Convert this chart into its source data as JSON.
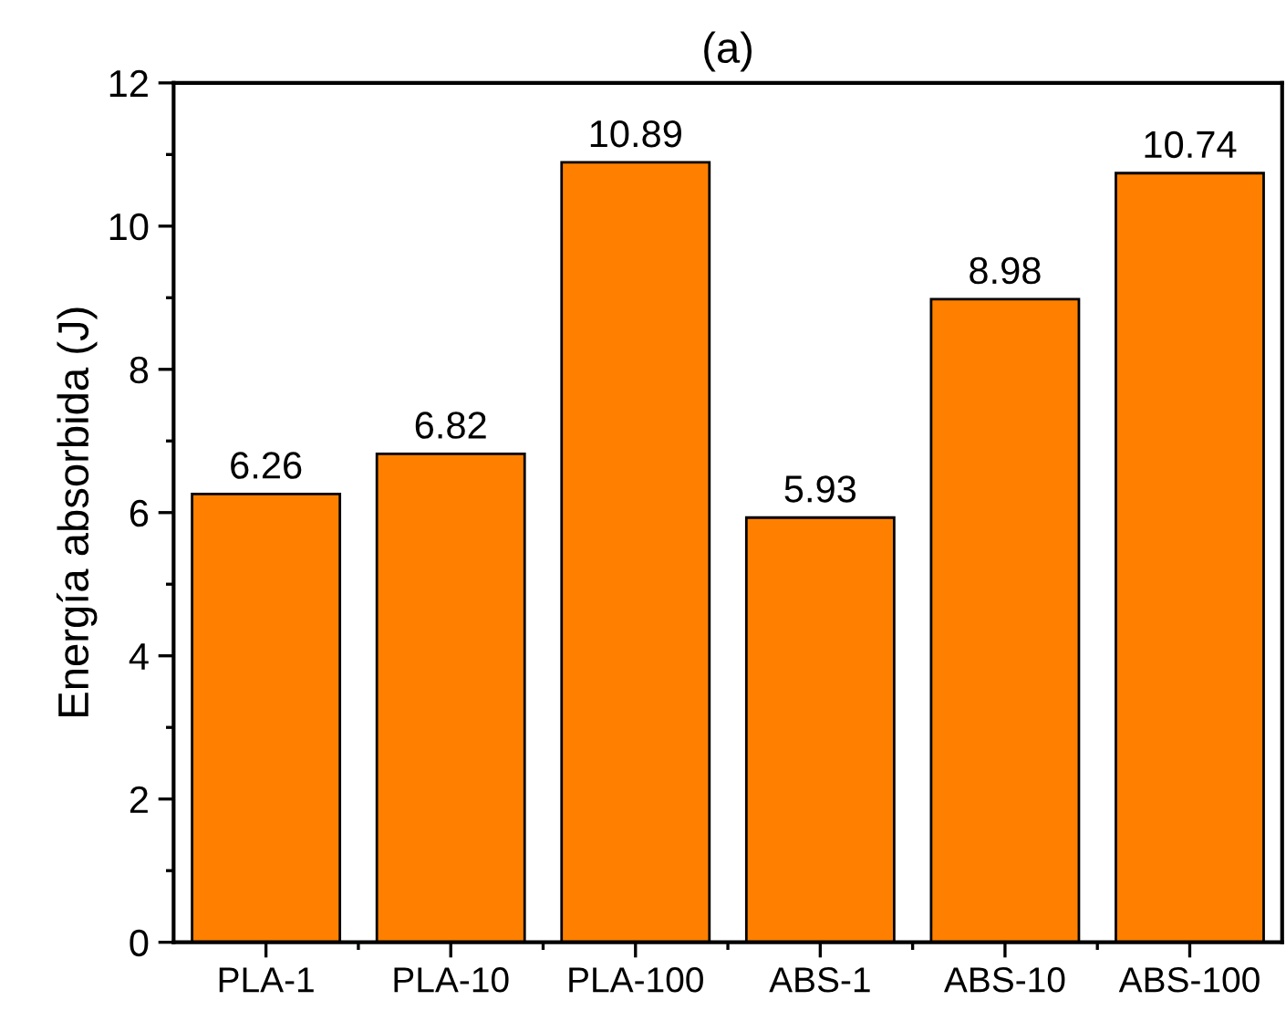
{
  "chart_data": {
    "type": "bar",
    "title": "(a)",
    "ylabel": "Energía absorbida (J)",
    "categories": [
      "PLA-1",
      "PLA-10",
      "PLA-100",
      "ABS-1",
      "ABS-10",
      "ABS-100"
    ],
    "series": [
      {
        "color": "#ff8000",
        "values": [
          6.26,
          6.82,
          10.89,
          5.93,
          8.98,
          10.74
        ]
      }
    ],
    "ylim": [
      0,
      12
    ],
    "yticks": [
      0,
      2,
      4,
      6,
      8,
      10,
      12
    ],
    "data_labels": true,
    "grid": false,
    "legend": false
  }
}
